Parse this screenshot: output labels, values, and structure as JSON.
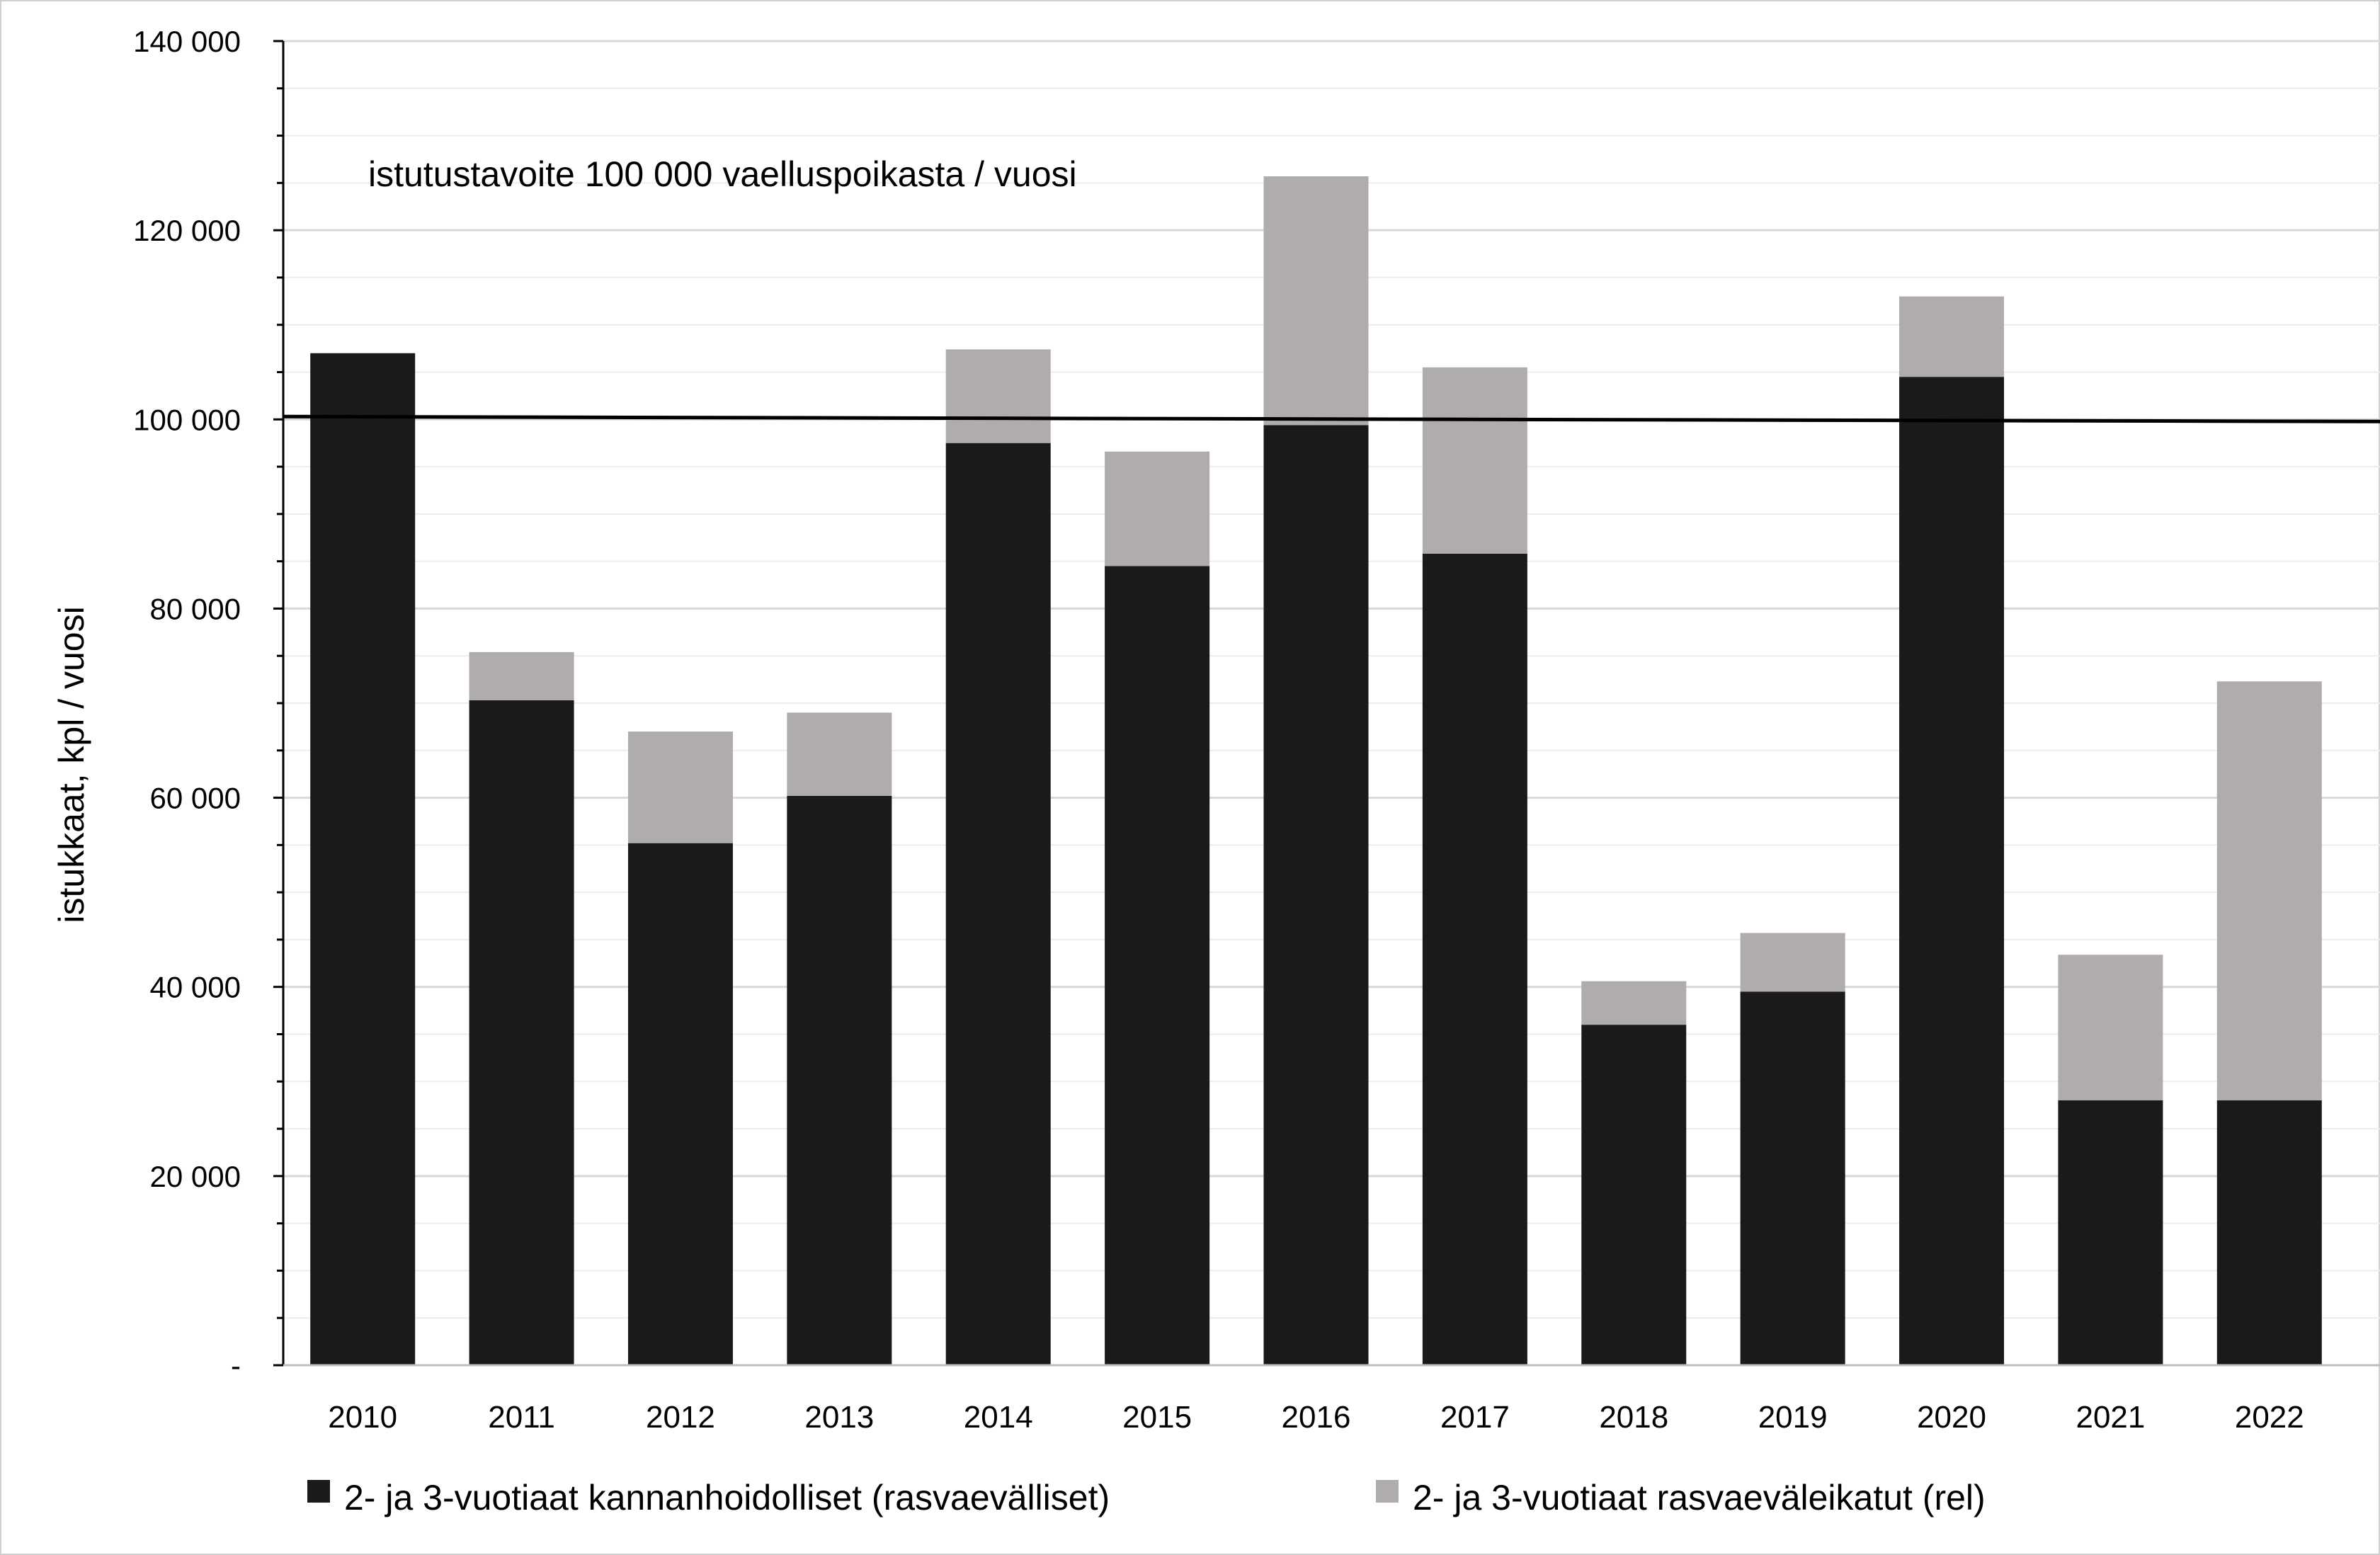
{
  "colors": {
    "series_1": "#1a1a1a",
    "series_2": "#b0acab",
    "target_line": "#000000",
    "grid": "#d9d9d9",
    "axis": "#000000"
  },
  "chart_data": {
    "type": "bar",
    "stacked": true,
    "title": "",
    "xlabel": "",
    "ylabel": "istukkaat, kpl / vuosi",
    "ylim": [
      0,
      140000
    ],
    "y_ticks": [
      0,
      20000,
      40000,
      60000,
      80000,
      100000,
      120000,
      140000
    ],
    "y_tick_labels": [
      "-",
      "20 000",
      "40 000",
      "60 000",
      "80 000",
      "100 000",
      "120 000",
      "140 000"
    ],
    "grid": true,
    "legend_position": "bottom",
    "categories": [
      "2010",
      "2011",
      "2012",
      "2013",
      "2014",
      "2015",
      "2016",
      "2017",
      "2018",
      "2019",
      "2020",
      "2021",
      "2022"
    ],
    "series": [
      {
        "name": "2- ja 3-vuotiaat kannanhoidolliset (rasvaevälliset)",
        "values": [
          107000,
          70300,
          55200,
          60200,
          97500,
          84500,
          99400,
          85800,
          36000,
          39500,
          104500,
          28000,
          28000
        ]
      },
      {
        "name": "2- ja 3-vuotiaat rasvaeväleikatut (rel)",
        "values": [
          0,
          5100,
          11800,
          8800,
          9900,
          12100,
          26300,
          19700,
          4600,
          6200,
          8500,
          15400,
          44300
        ]
      }
    ],
    "reference_line": {
      "value": 100000
    },
    "annotation": "istutustavoite 100 000 vaelluspoikasta / vuosi"
  }
}
